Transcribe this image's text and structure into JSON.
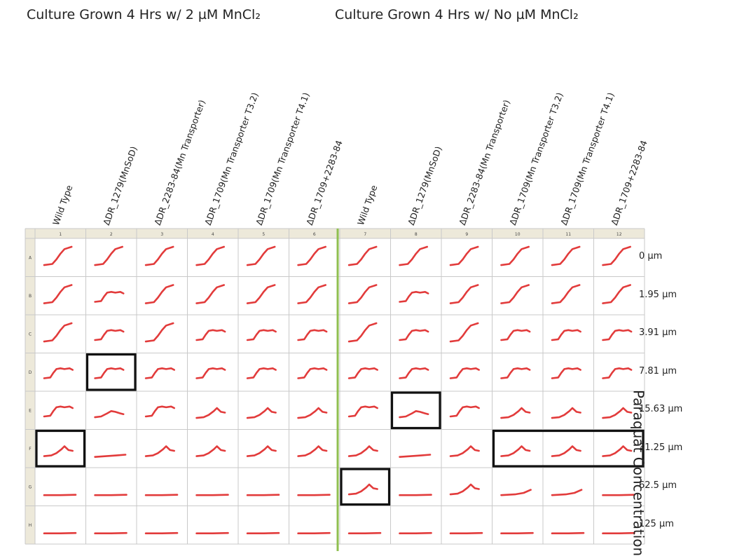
{
  "titles": {
    "left": "Culture Grown 4 Hrs w/ 2 µM MnCl₂",
    "right": "Culture Grown 4 Hrs w/ No µM MnCl₂"
  },
  "columns": [
    "Wild Type",
    "ΔDR_1279(MnSoD)",
    "ΔDR_2283-84(Mn Transporter)",
    "ΔDR_1709(Mn Transporter T3.2)",
    "ΔDR_1709(Mn Transporter T4.1)",
    "ΔDR_1709+2283-84",
    "Wild Type",
    "ΔDR_1279(MnSoD)",
    "ΔDR_2283-84(Mn Transporter)",
    "ΔDR_1709(Mn Transporter T3.2)",
    "ΔDR_1709(Mn Transporter T4.1)",
    "ΔDR_1709+2283-84"
  ],
  "plate_rows": [
    "A",
    "B",
    "C",
    "D",
    "E",
    "F",
    "G",
    "H"
  ],
  "plate_cols": [
    "1",
    "2",
    "3",
    "4",
    "5",
    "6",
    "7",
    "8",
    "9",
    "10",
    "11",
    "12"
  ],
  "concentrations": [
    "0 µm",
    "1.95 µm",
    "3.91 µm",
    "7.81 µm",
    "15.63 µm",
    "31.25 µm",
    "62.5 µm",
    "125 µm"
  ],
  "y_axis_title": "Paraquat Concentration",
  "colors": {
    "curve": "#e23b3b",
    "divider": "#8fbf4f",
    "grid": "#c9c9c9",
    "header_bg": "#ede9da",
    "highlight": "#111111"
  },
  "curve_shapes": [
    [
      "S",
      "S",
      "S",
      "S",
      "S",
      "S",
      "S",
      "S",
      "S",
      "S",
      "S",
      "S"
    ],
    [
      "S",
      "P",
      "S",
      "S",
      "S",
      "S",
      "S",
      "P",
      "S",
      "S",
      "S",
      "S"
    ],
    [
      "S",
      "P",
      "S",
      "P",
      "P",
      "P",
      "S",
      "P",
      "S",
      "P",
      "P",
      "P"
    ],
    [
      "P",
      "P",
      "P",
      "P",
      "P",
      "P",
      "P",
      "P",
      "P",
      "P",
      "P",
      "P"
    ],
    [
      "P",
      "B",
      "P",
      "K",
      "K",
      "K",
      "P",
      "B",
      "P",
      "K",
      "K",
      "K"
    ],
    [
      "K",
      "L",
      "K",
      "K",
      "K",
      "K",
      "K",
      "L",
      "K",
      "K",
      "K",
      "K"
    ],
    [
      "F",
      "F",
      "F",
      "F",
      "F",
      "F",
      "K",
      "F",
      "K",
      "R",
      "R",
      "F"
    ],
    [
      "F",
      "F",
      "F",
      "F",
      "F",
      "F",
      "F",
      "F",
      "F",
      "F",
      "F",
      "F"
    ]
  ],
  "highlighted_wells": [
    {
      "row": "D",
      "cols": [
        "2"
      ]
    },
    {
      "row": "F",
      "cols": [
        "1"
      ]
    },
    {
      "row": "E",
      "cols": [
        "8"
      ]
    },
    {
      "row": "G",
      "cols": [
        "7"
      ]
    },
    {
      "row": "F",
      "cols": [
        "10",
        "11",
        "12"
      ]
    }
  ]
}
